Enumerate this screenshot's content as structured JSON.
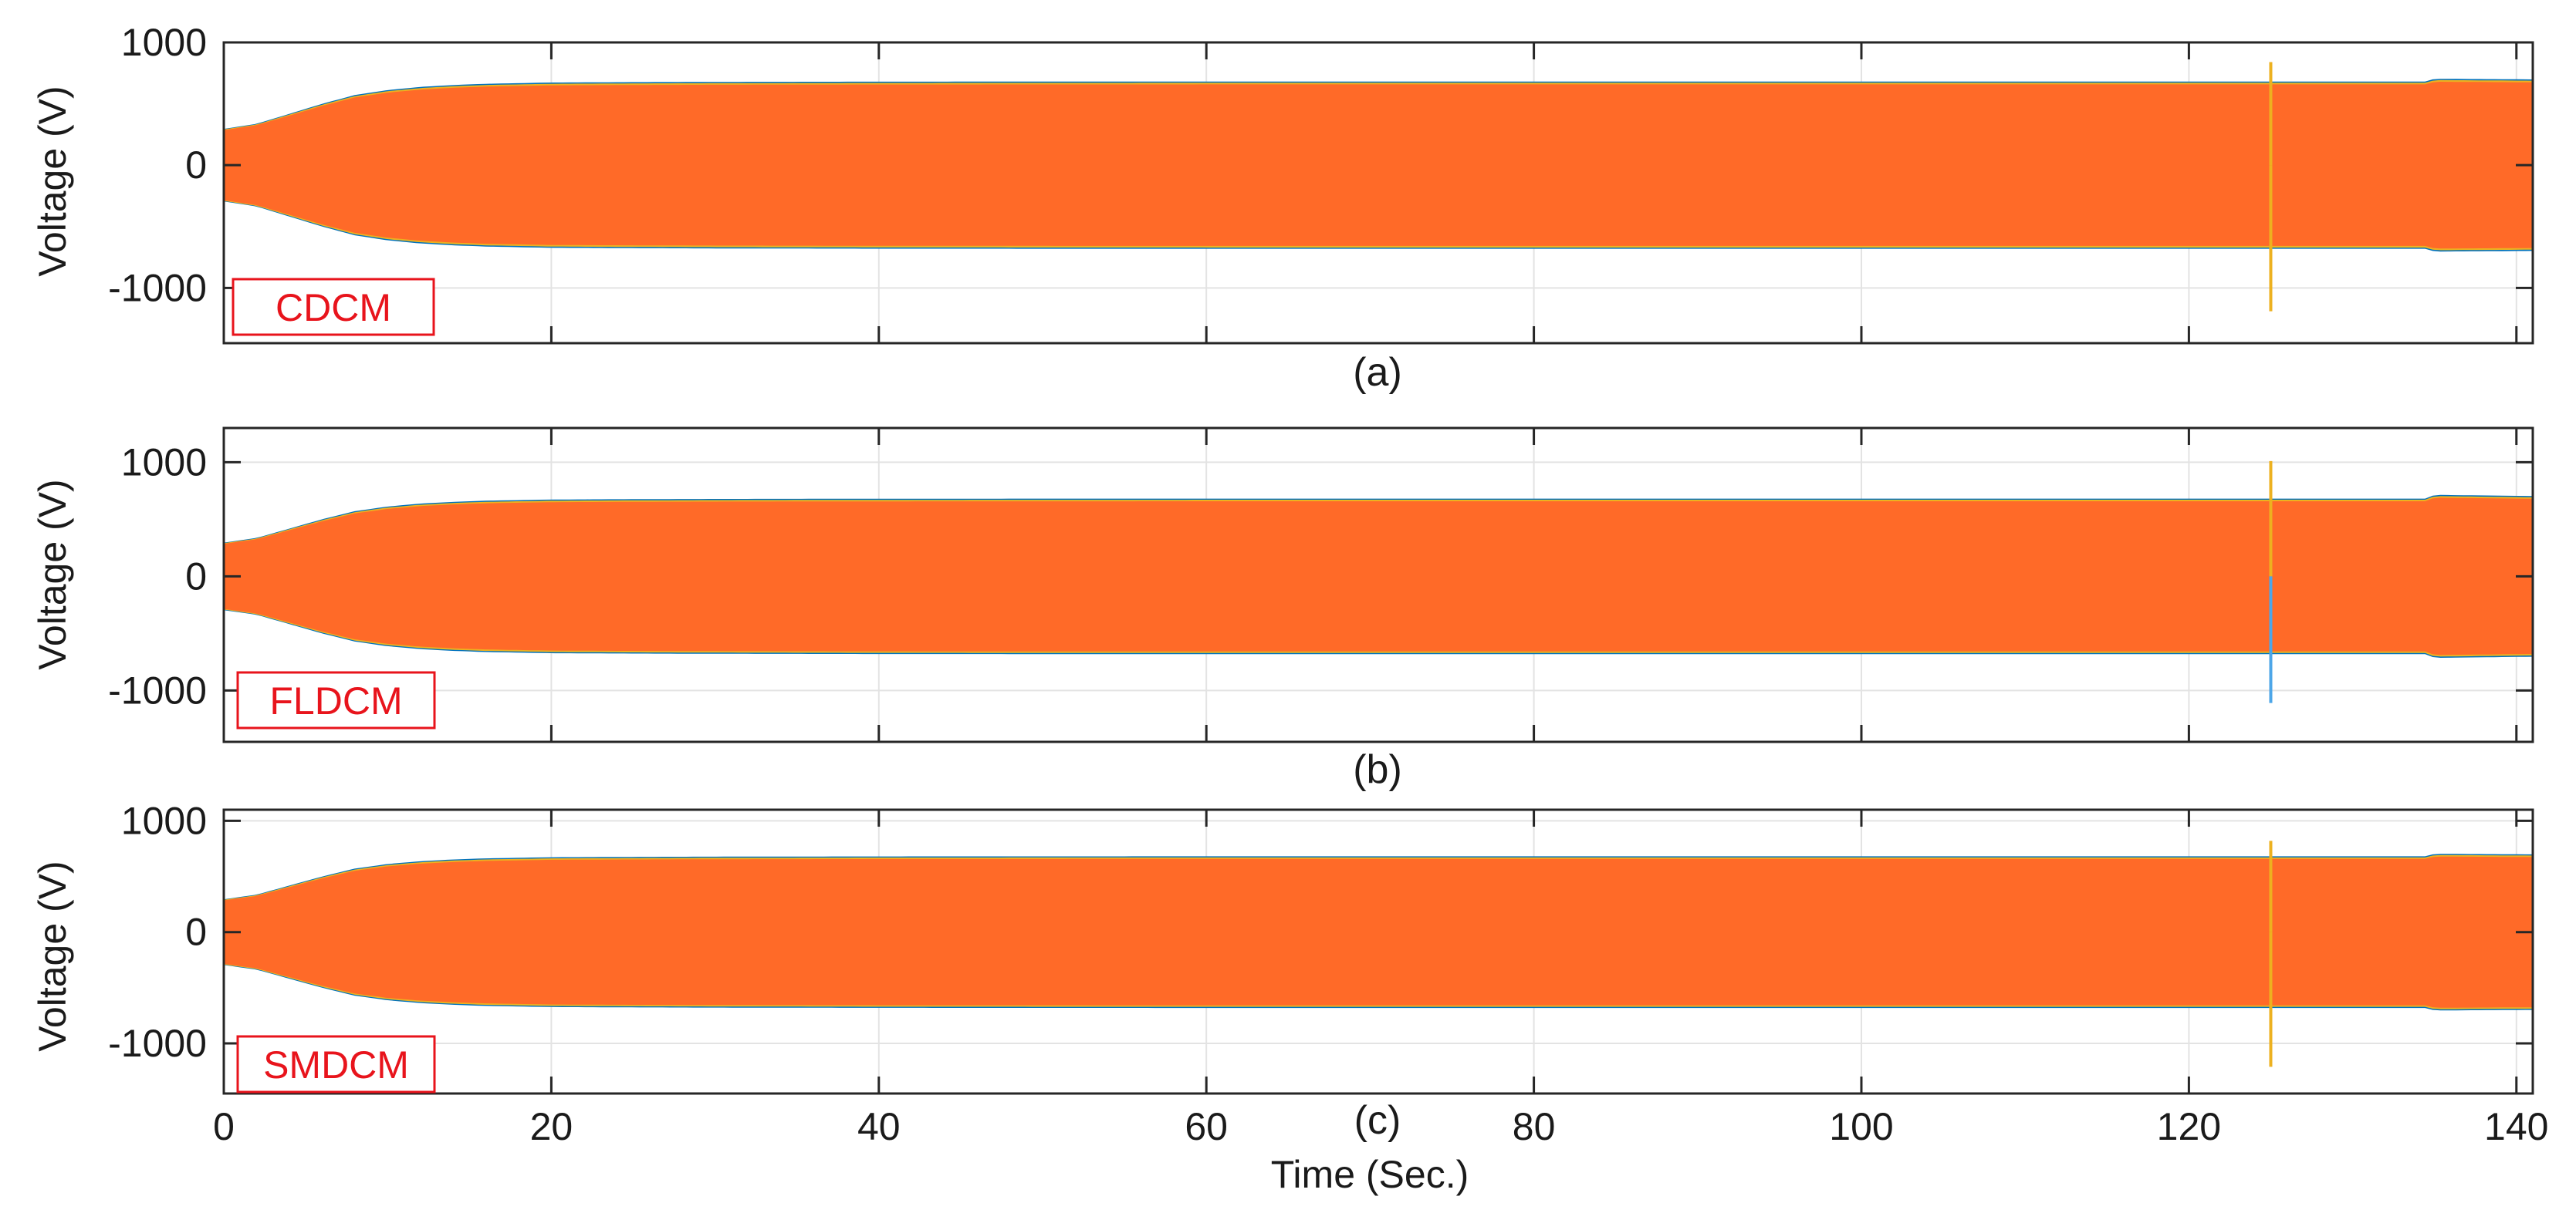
{
  "chart_data": [
    {
      "type": "line",
      "panel": "(a)",
      "ylabel": "Voltage (V)",
      "legend_label": "CDCM",
      "xlim": [
        0,
        141
      ],
      "ylim": [
        -1450,
        1000
      ],
      "yticks": [
        -1000,
        0,
        1000
      ],
      "xticks": [
        0,
        20,
        40,
        60,
        80,
        100,
        120,
        140
      ],
      "grid": true,
      "envelope": {
        "t": [
          0,
          2,
          4,
          6,
          8,
          10,
          12,
          14,
          16,
          20,
          25,
          30,
          40,
          60,
          80,
          100,
          120,
          134.5,
          135,
          141
        ],
        "amp": [
          290,
          330,
          410,
          490,
          560,
          600,
          625,
          640,
          650,
          660,
          663,
          665,
          667,
          668,
          668,
          668,
          668,
          668,
          690,
          685
        ]
      },
      "transient": {
        "t": 125,
        "max": 840,
        "min": -1190
      },
      "series_colors": [
        "#0072bd",
        "#edb120",
        "#ff6a28"
      ]
    },
    {
      "type": "line",
      "panel": "(b)",
      "ylabel": "Voltage (V)",
      "legend_label": "FLDCM",
      "xlim": [
        0,
        141
      ],
      "ylim": [
        -1450,
        1300
      ],
      "yticks": [
        -1000,
        0,
        1000
      ],
      "xticks": [
        0,
        20,
        40,
        60,
        80,
        100,
        120,
        140
      ],
      "grid": true,
      "envelope": {
        "t": [
          0,
          2,
          4,
          6,
          8,
          10,
          12,
          14,
          16,
          20,
          25,
          30,
          40,
          60,
          80,
          100,
          120,
          134.5,
          135,
          141
        ],
        "amp": [
          290,
          330,
          410,
          490,
          560,
          600,
          625,
          640,
          650,
          660,
          663,
          665,
          667,
          668,
          668,
          668,
          668,
          668,
          700,
          690
        ]
      },
      "transient": {
        "t": 125,
        "max": 1010,
        "min": -1110
      },
      "series_colors": [
        "#0072bd",
        "#edb120",
        "#ff6a28"
      ]
    },
    {
      "type": "line",
      "panel": "(c)",
      "ylabel": "Voltage (V)",
      "legend_label": "SMDCM",
      "xlim": [
        0,
        141
      ],
      "xlabel": "Time (Sec.)",
      "ylim": [
        -1450,
        1100
      ],
      "yticks": [
        -1000,
        0,
        1000
      ],
      "xticks": [
        0,
        20,
        40,
        60,
        80,
        100,
        120,
        140
      ],
      "grid": true,
      "envelope": {
        "t": [
          0,
          2,
          4,
          6,
          8,
          10,
          12,
          14,
          16,
          20,
          25,
          30,
          40,
          60,
          80,
          100,
          120,
          134.5,
          135,
          141
        ],
        "amp": [
          290,
          330,
          410,
          490,
          560,
          600,
          625,
          640,
          650,
          660,
          663,
          665,
          667,
          668,
          668,
          668,
          668,
          668,
          690,
          685
        ]
      },
      "transient": {
        "t": 125,
        "max": 820,
        "min": -1210
      },
      "series_colors": [
        "#0072bd",
        "#edb120",
        "#ff6a28"
      ]
    }
  ]
}
